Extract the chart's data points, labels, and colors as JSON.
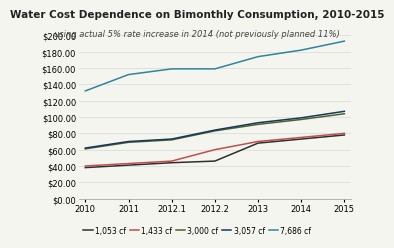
{
  "title": "Water Cost Dependence on Bimonthly Consumption, 2010-2015",
  "subtitle": "using actual 5% rate increase in 2014 (not previously planned 11%)",
  "x_labels": [
    "2010",
    "2011",
    "2012.1",
    "2012.2",
    "2013",
    "2014",
    "2015"
  ],
  "x_values": [
    0,
    1,
    2,
    3,
    4,
    5,
    6
  ],
  "series": [
    {
      "label": "1,053 cf",
      "color": "#2f2f2f",
      "values": [
        38,
        41,
        44,
        46,
        68,
        73,
        78
      ]
    },
    {
      "label": "1,433 cf",
      "color": "#c0504d",
      "values": [
        40,
        43,
        46,
        60,
        70,
        75,
        80
      ]
    },
    {
      "label": "3,000 cf",
      "color": "#4f6228",
      "values": [
        61,
        69,
        72,
        83,
        91,
        97,
        104
      ]
    },
    {
      "label": "3,057 cf",
      "color": "#17375e",
      "values": [
        62,
        70,
        73,
        84,
        93,
        99,
        107
      ]
    },
    {
      "label": "7,686 cf",
      "color": "#31849b",
      "values": [
        132,
        152,
        159,
        159,
        174,
        182,
        193
      ]
    }
  ],
  "ylim": [
    0,
    200
  ],
  "yticks": [
    0,
    20,
    40,
    60,
    80,
    100,
    120,
    140,
    160,
    180,
    200
  ],
  "background_color": "#f5f5f0",
  "plot_bg_color": "#f5f5f0",
  "grid_color": "#d8d8d8",
  "title_fontsize": 7.5,
  "subtitle_fontsize": 6.0,
  "legend_fontsize": 5.5,
  "tick_fontsize": 6.0
}
